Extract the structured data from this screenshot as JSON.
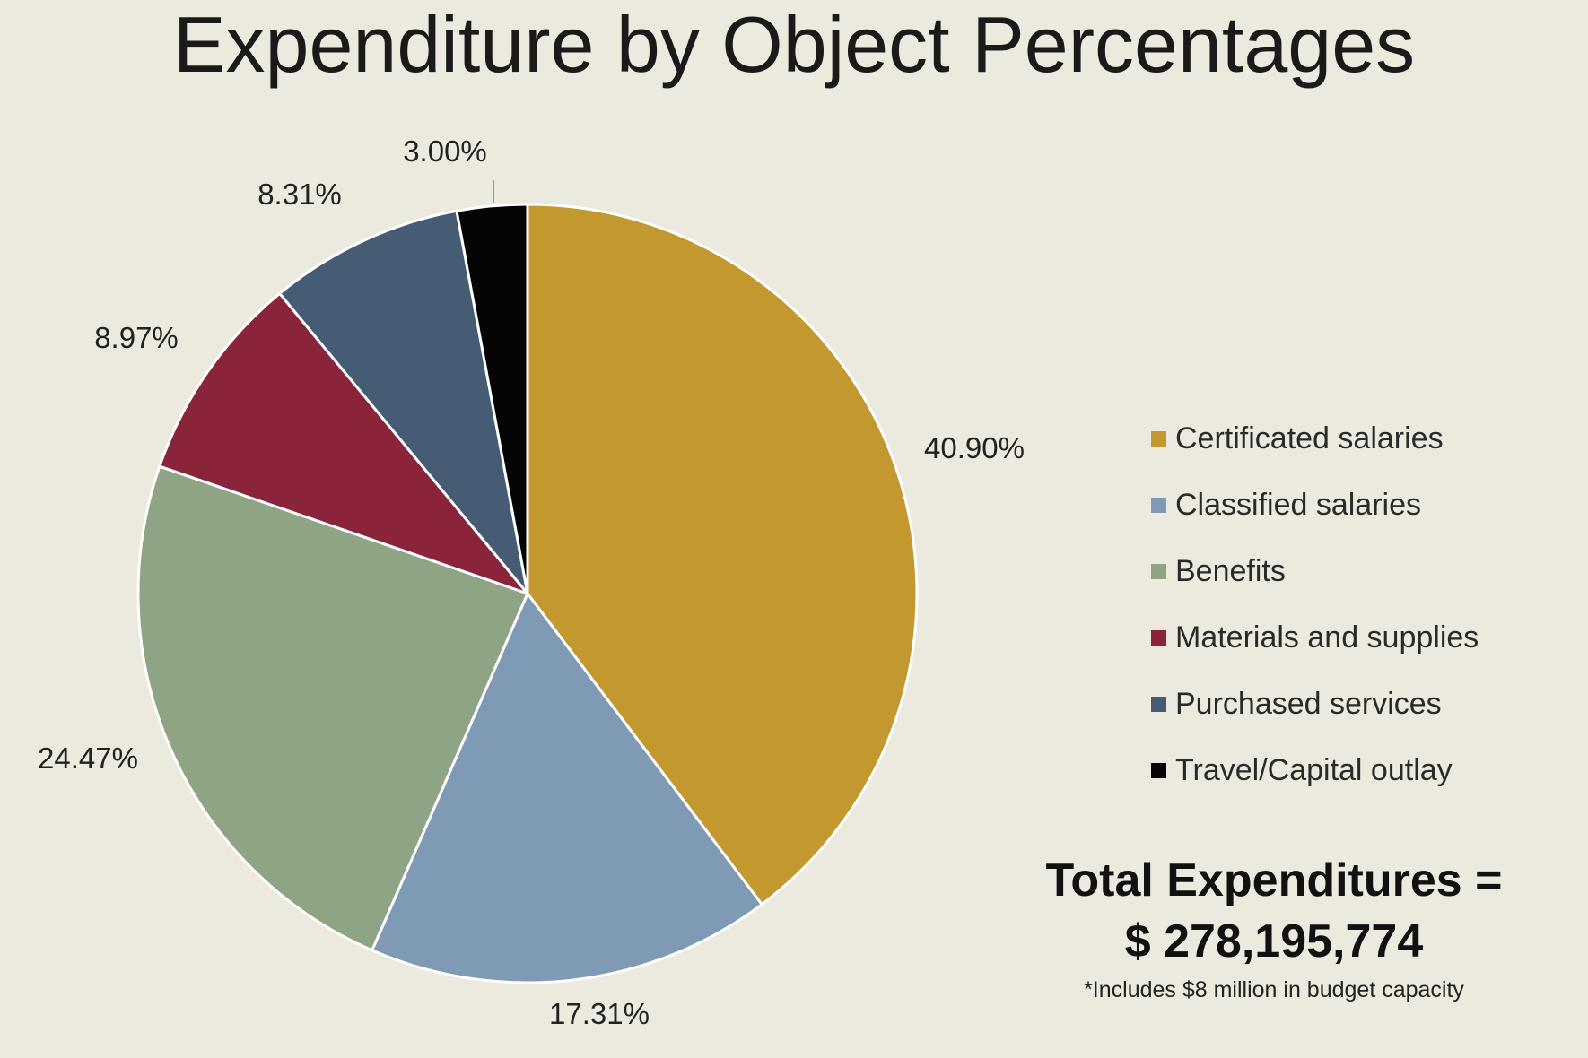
{
  "chart_data": {
    "type": "pie",
    "title": "Expenditure by Object Percentages",
    "slices": [
      {
        "name": "Certificated salaries",
        "value": 40.9,
        "label": "40.90%",
        "color": "#c2982f"
      },
      {
        "name": "Classified salaries",
        "value": 17.31,
        "label": "17.31%",
        "color": "#7e9ab5"
      },
      {
        "name": "Benefits",
        "value": 24.47,
        "label": "24.47%",
        "color": "#8fa485"
      },
      {
        "name": "Materials and supplies",
        "value": 8.97,
        "label": "8.97%",
        "color": "#8a243a"
      },
      {
        "name": "Purchased services",
        "value": 8.31,
        "label": "8.31%",
        "color": "#465c74"
      },
      {
        "name": "Travel/Capital outlay",
        "value": 3.0,
        "label": "3.00%",
        "color": "#050505"
      }
    ],
    "start_angle": "12 o'clock",
    "direction": "clockwise",
    "legend_position": "right"
  },
  "total": {
    "label": "Total Expenditures =",
    "value": "$ 278,195,774",
    "footnote": "*Includes $8 million in budget capacity"
  }
}
